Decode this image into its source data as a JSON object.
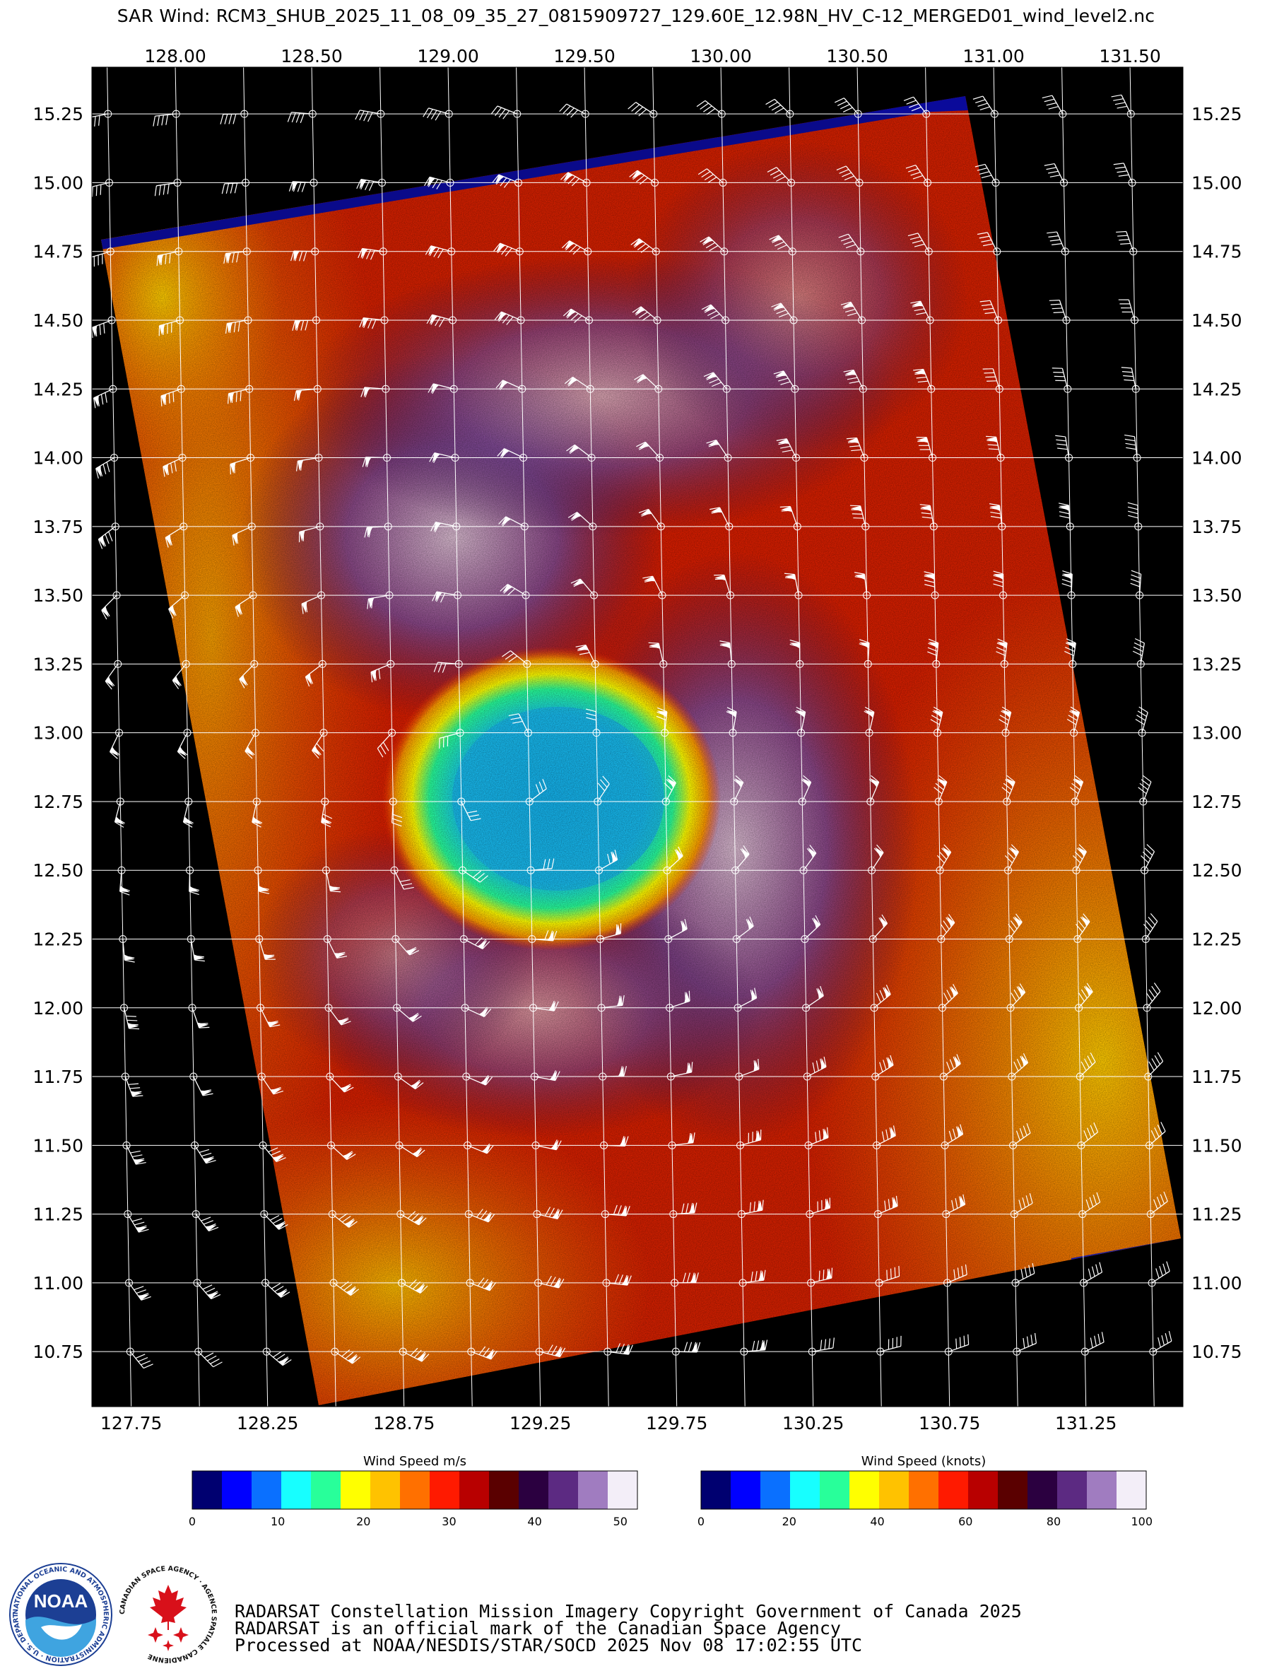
{
  "title": "SAR Wind: RCM3_SHUB_2025_11_08_09_35_27_0815909727_129.60E_12.98N_HV_C-12_MERGED01_wind_level2.nc",
  "map": {
    "top_lon_ticks": [
      "128.00",
      "128.50",
      "129.00",
      "129.50",
      "130.00",
      "130.50",
      "131.00",
      "131.50"
    ],
    "bottom_lon_ticks": [
      "127.75",
      "128.25",
      "128.75",
      "129.25",
      "129.75",
      "130.25",
      "130.75",
      "131.25"
    ],
    "lat_ticks": [
      "15.25",
      "15.00",
      "14.75",
      "14.50",
      "14.25",
      "14.00",
      "13.75",
      "13.50",
      "13.25",
      "13.00",
      "12.75",
      "12.50",
      "12.25",
      "12.00",
      "11.75",
      "11.50",
      "11.25",
      "11.00",
      "10.75"
    ],
    "lon_range": [
      127.65,
      131.65
    ],
    "lat_range": [
      10.55,
      15.42
    ],
    "storm_center_lon": 129.1,
    "storm_center_lat": 12.85,
    "background_color": "#000000",
    "grid_color": "#ffffff"
  },
  "colorbars": [
    {
      "title": "Wind Speed m/s",
      "ticks": [
        "0",
        "10",
        "20",
        "30",
        "40",
        "50"
      ],
      "range": [
        0,
        52
      ],
      "colors": [
        "#000070",
        "#0000ff",
        "#0a70ff",
        "#17ffff",
        "#28ff9a",
        "#ffff00",
        "#ffc200",
        "#ff7000",
        "#ff1a00",
        "#b80000",
        "#5a0000",
        "#2b0040",
        "#5c2a82",
        "#a07cc0",
        "#f3eef8"
      ]
    },
    {
      "title": "Wind Speed (knots)",
      "ticks": [
        "0",
        "20",
        "40",
        "60",
        "80",
        "100"
      ],
      "range": [
        0,
        101
      ],
      "colors": [
        "#000070",
        "#0000ff",
        "#0a70ff",
        "#17ffff",
        "#28ff9a",
        "#ffff00",
        "#ffc200",
        "#ff7000",
        "#ff1a00",
        "#b80000",
        "#5a0000",
        "#2b0040",
        "#5c2a82",
        "#a07cc0",
        "#f3eef8"
      ]
    }
  ],
  "logos": {
    "noaa_text": "NOAA",
    "noaa_ring": "NATIONAL OCEANIC AND ATMOSPHERIC ADMINISTRATION · U.S. DEPARTMENT OF COMMERCE",
    "csa_ring": "CANADIAN SPACE AGENCY · AGENCE SPATIALE CANADIENNE"
  },
  "credits": [
    "RADARSAT Constellation Mission Imagery Copyright Government of Canada 2025",
    "RADARSAT is an official mark of the Canadian Space Agency",
    "Processed at NOAA/NESDIS/STAR/SOCD 2025 Nov 08 17:02:55 UTC"
  ]
}
